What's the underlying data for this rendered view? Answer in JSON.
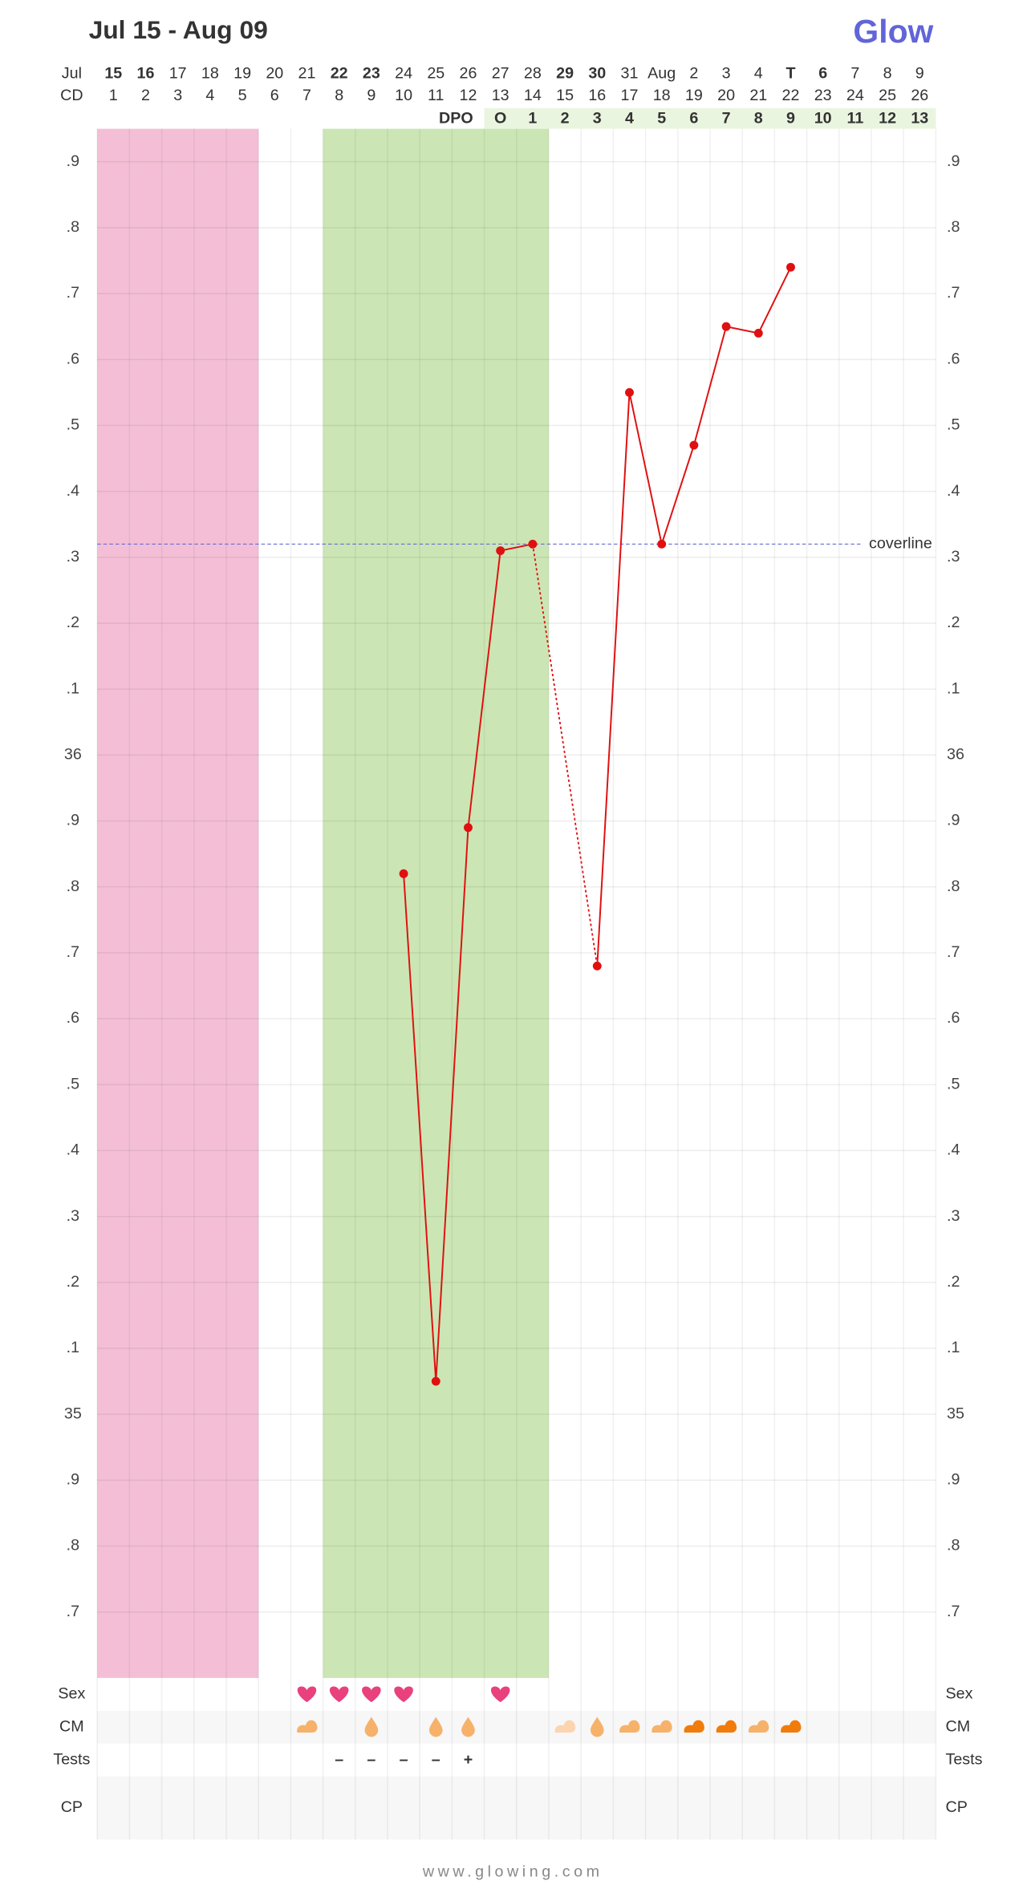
{
  "header": {
    "title": "Jul 15 - Aug 09",
    "logo": "Glow"
  },
  "chart_data": {
    "type": "line",
    "month_label": "Jul",
    "cd_label": "CD",
    "dpo_label": "DPO",
    "dates": [
      15,
      16,
      17,
      18,
      19,
      20,
      21,
      22,
      23,
      24,
      25,
      26,
      27,
      28,
      29,
      30,
      31,
      "Aug",
      2,
      3,
      4,
      "T",
      6,
      7,
      8,
      9
    ],
    "date_colors": [
      "#e8533f",
      "#e8533f",
      "#888888",
      "#888888",
      "#888888",
      "#888888",
      "#888888",
      "#e8533f",
      "#e8533f",
      "#888888",
      "#888888",
      "#888888",
      "#888888",
      "#888888",
      "#e8533f",
      "#e8533f",
      "#888888",
      "#888888",
      "#888888",
      "#888888",
      "#888888",
      "#5b5fc7",
      "#e8533f",
      "#888888",
      "#888888",
      "#888888"
    ],
    "x": [
      1,
      2,
      3,
      4,
      5,
      6,
      7,
      8,
      9,
      10,
      11,
      12,
      13,
      14,
      15,
      16,
      17,
      18,
      19,
      20,
      21,
      22,
      23,
      24,
      25,
      26
    ],
    "dpo": [
      null,
      null,
      null,
      null,
      null,
      null,
      null,
      null,
      null,
      null,
      null,
      null,
      "O",
      1,
      2,
      3,
      4,
      5,
      6,
      7,
      8,
      9,
      10,
      11,
      12,
      13
    ],
    "values": [
      null,
      null,
      null,
      null,
      null,
      null,
      null,
      null,
      null,
      35.82,
      35.05,
      35.89,
      36.31,
      36.32,
      null,
      35.68,
      36.55,
      36.32,
      36.47,
      36.65,
      36.64,
      36.74,
      null,
      null,
      null,
      null
    ],
    "color": "#e01010",
    "ylim": [
      34.6,
      36.95
    ],
    "yticks": [
      {
        "value": 36.9,
        "label": ".9"
      },
      {
        "value": 36.8,
        "label": ".8"
      },
      {
        "value": 36.7,
        "label": ".7"
      },
      {
        "value": 36.6,
        "label": ".6"
      },
      {
        "value": 36.5,
        "label": ".5"
      },
      {
        "value": 36.4,
        "label": ".4"
      },
      {
        "value": 36.3,
        "label": ".3"
      },
      {
        "value": 36.2,
        "label": ".2"
      },
      {
        "value": 36.1,
        "label": ".1"
      },
      36,
      {
        "value": 35.9,
        "label": ".9"
      },
      {
        "value": 35.8,
        "label": ".8"
      },
      {
        "value": 35.7,
        "label": ".7"
      },
      {
        "value": 35.6,
        "label": ".6"
      },
      {
        "value": 35.5,
        "label": ".5"
      },
      {
        "value": 35.4,
        "label": ".4"
      },
      {
        "value": 35.3,
        "label": ".3"
      },
      {
        "value": 35.2,
        "label": ".2"
      },
      {
        "value": 35.1,
        "label": ".1"
      },
      35,
      {
        "value": 34.9,
        "label": ".9"
      },
      {
        "value": 34.8,
        "label": ".8"
      },
      {
        "value": 34.7,
        "label": ".7"
      }
    ],
    "coverline": {
      "value": 36.32,
      "label": "coverline",
      "color": "#6a6ad0"
    },
    "bands": [
      {
        "from": 1,
        "to": 5,
        "color": "#f4bfd6"
      },
      {
        "from": 8,
        "to": 14,
        "color": "#cbe6b4"
      }
    ],
    "grid": true
  },
  "rows": {
    "labels": [
      "Sex",
      "CM",
      "Tests",
      "CP"
    ],
    "sex": [
      7,
      8,
      9,
      10,
      13
    ],
    "sex_color": "#e8417e",
    "cm": [
      {
        "cd": 7,
        "shape": "blob",
        "color": "#f6b26b"
      },
      {
        "cd": 9,
        "shape": "drop",
        "color": "#f6b26b"
      },
      {
        "cd": 11,
        "shape": "drop",
        "color": "#f6b26b"
      },
      {
        "cd": 12,
        "shape": "drop",
        "color": "#f6b26b"
      },
      {
        "cd": 15,
        "shape": "blob",
        "color": "#fbd5b0"
      },
      {
        "cd": 16,
        "shape": "drop",
        "color": "#f6b26b"
      },
      {
        "cd": 17,
        "shape": "blob",
        "color": "#f6b26b"
      },
      {
        "cd": 18,
        "shape": "blob",
        "color": "#f6b26b"
      },
      {
        "cd": 19,
        "shape": "blob",
        "color": "#f07c0c"
      },
      {
        "cd": 20,
        "shape": "blob",
        "color": "#f07c0c"
      },
      {
        "cd": 21,
        "shape": "blob",
        "color": "#f6b26b"
      },
      {
        "cd": 22,
        "shape": "blob",
        "color": "#f07c0c"
      }
    ],
    "tests": [
      {
        "cd": 8,
        "label": "–"
      },
      {
        "cd": 9,
        "label": "–"
      },
      {
        "cd": 10,
        "label": "–"
      },
      {
        "cd": 11,
        "label": "–"
      },
      {
        "cd": 12,
        "label": "+"
      }
    ],
    "tests_color": "#6cbf3c"
  },
  "footer": "www.glowing.com"
}
